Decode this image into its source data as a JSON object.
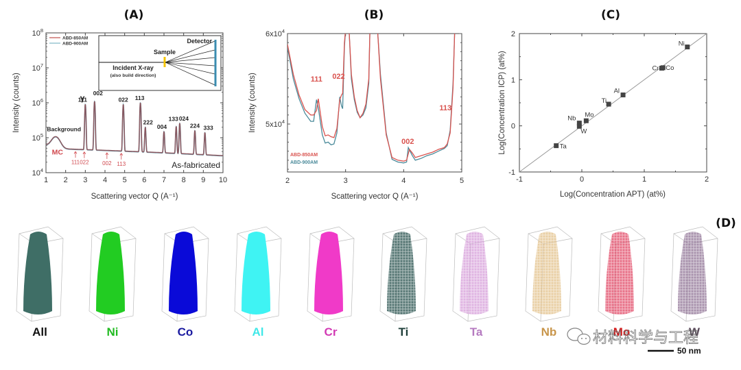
{
  "figure": {
    "panels": [
      "(A)",
      "(B)",
      "(C)",
      "(D)"
    ]
  },
  "chart_data": [
    {
      "id": "A",
      "type": "line",
      "title": "(A)",
      "xlabel": "Scattering vector Q (A⁻¹)",
      "ylabel": "Intensity (counts)",
      "xlim": [
        1,
        10
      ],
      "ylim": [
        10000,
        100000000
      ],
      "yscale": "log",
      "xticks": [
        "1",
        "2",
        "3",
        "4",
        "5",
        "6",
        "7",
        "8",
        "9",
        "10"
      ],
      "yticks": [
        "10^4",
        "10^5",
        "10^6",
        "10^7",
        "10^8"
      ],
      "legend": {
        "position": "top-left",
        "entries": [
          {
            "name": "ABD-850AM",
            "color": "#c0504d"
          },
          {
            "name": "ABD-900AM",
            "color": "#7fb8c6"
          }
        ]
      },
      "baseline": {
        "start": 60000,
        "hump_Q": 1.5,
        "hump_value": 105000,
        "mid": 48000,
        "end": 30000
      },
      "gamma_label": "γ",
      "peaks": [
        {
          "label": "111",
          "Q": 3.0,
          "value": 900000
        },
        {
          "label": "002",
          "Q": 3.47,
          "value": 1100000
        },
        {
          "label": "022",
          "Q": 4.93,
          "value": 900000
        },
        {
          "label": "113",
          "Q": 5.8,
          "value": 1000000
        },
        {
          "label": "222",
          "Q": 6.05,
          "value": 200000
        },
        {
          "label": "004",
          "Q": 7.0,
          "value": 150000
        },
        {
          "label": "133",
          "Q": 7.62,
          "value": 210000
        },
        {
          "label": "024",
          "Q": 7.8,
          "value": 260000
        },
        {
          "label": "224",
          "Q": 8.57,
          "value": 160000
        },
        {
          "label": "333",
          "Q": 9.08,
          "value": 140000
        }
      ],
      "mc_label": "MC",
      "mc_peaks": [
        {
          "label": "111",
          "Q": 2.5
        },
        {
          "label": "022",
          "Q": 2.95
        },
        {
          "label": "002",
          "Q": 4.1
        },
        {
          "label": "113",
          "Q": 4.83
        }
      ],
      "annotations": {
        "background": "Background",
        "state": "As-fabricated"
      },
      "inset": {
        "detector": "Detector",
        "sample": "Sample",
        "incident": "Incident X-ray",
        "incident_note": "(also build direction)"
      }
    },
    {
      "id": "B",
      "type": "line",
      "title": "(B)",
      "xlabel": "Scattering vector Q (A⁻¹)",
      "ylabel": "Intensity (counts)",
      "xlim": [
        2,
        5
      ],
      "ylim": [
        44700,
        60000
      ],
      "xticks": [
        "2",
        "3",
        "4",
        "5"
      ],
      "yticks": [
        {
          "value": 50000,
          "label": "5x10^4"
        },
        {
          "value": 60000,
          "label": "6x10^4"
        }
      ],
      "legend": {
        "position": "bottom-left",
        "entries": [
          {
            "name": "ABD-850AM",
            "color": "#d9534f"
          },
          {
            "name": "ABD-900AM",
            "color": "#4a8a9a"
          }
        ]
      },
      "peak_labels": [
        {
          "label": "111",
          "Q": 2.5
        },
        {
          "label": "022",
          "Q": 2.9
        },
        {
          "label": "002",
          "Q": 4.08
        },
        {
          "label": "113",
          "Q": 4.8
        }
      ],
      "series": [
        {
          "name": "ABD-850AM",
          "color": "#d9534f",
          "x": [
            2.0,
            2.1,
            2.2,
            2.3,
            2.4,
            2.45,
            2.5,
            2.53,
            2.6,
            2.65,
            2.7,
            2.75,
            2.8,
            2.85,
            2.9,
            2.93,
            2.95,
            2.98,
            3.0,
            3.06,
            3.1,
            3.15,
            3.2,
            3.25,
            3.3,
            3.35,
            3.4,
            3.42,
            3.55,
            3.6,
            3.7,
            3.8,
            3.9,
            4.0,
            4.05,
            4.1,
            4.15,
            4.2,
            4.3,
            4.4,
            4.5,
            4.6,
            4.7,
            4.75,
            4.8,
            4.85,
            4.88
          ],
          "y": [
            58800,
            55500,
            53200,
            51600,
            51000,
            51000,
            51500,
            52800,
            49700,
            48700,
            48800,
            48600,
            48500,
            49500,
            52700,
            53200,
            53400,
            59000,
            60500,
            60500,
            55500,
            53000,
            51500,
            50700,
            51200,
            52200,
            55000,
            60500,
            60500,
            55000,
            48800,
            46300,
            46000,
            45900,
            46000,
            47200,
            46800,
            46300,
            46500,
            46700,
            46900,
            47200,
            47400,
            47800,
            49000,
            54000,
            60500
          ]
        },
        {
          "name": "ABD-900AM",
          "color": "#4a8a9a",
          "x": [
            2.0,
            2.1,
            2.2,
            2.3,
            2.4,
            2.45,
            2.5,
            2.53,
            2.6,
            2.65,
            2.7,
            2.75,
            2.8,
            2.85,
            2.9,
            2.93,
            2.95,
            2.98,
            3.0,
            3.06,
            3.1,
            3.15,
            3.2,
            3.25,
            3.3,
            3.35,
            3.4,
            3.42,
            3.55,
            3.6,
            3.7,
            3.8,
            3.9,
            4.0,
            4.05,
            4.08,
            4.15,
            4.2,
            4.3,
            4.4,
            4.5,
            4.6,
            4.7,
            4.75,
            4.8,
            4.85,
            4.88
          ],
          "y": [
            58500,
            55000,
            52800,
            51200,
            50300,
            50300,
            52700,
            51800,
            48800,
            47900,
            48000,
            47700,
            47800,
            49000,
            53000,
            52000,
            51700,
            58500,
            60500,
            60500,
            55000,
            52700,
            51300,
            50700,
            51000,
            51800,
            54500,
            60500,
            60500,
            55500,
            49000,
            46100,
            45800,
            45700,
            45800,
            47400,
            46500,
            46000,
            46200,
            46500,
            46700,
            47000,
            47300,
            47600,
            49300,
            54500,
            60500
          ]
        }
      ]
    },
    {
      "id": "C",
      "type": "scatter",
      "title": "(C)",
      "xlabel": "Log(Concentration APT) (at%)",
      "ylabel": "Log(Concentration ICP) (at%)",
      "xlim": [
        -1,
        2
      ],
      "ylim": [
        -1,
        2
      ],
      "xticks": [
        "-1",
        "0",
        "1",
        "2"
      ],
      "yticks": [
        "-1",
        "0",
        "1",
        "2"
      ],
      "reference_line": "y = x",
      "points": [
        {
          "label": "Ni",
          "x": 1.69,
          "y": 1.71
        },
        {
          "label": "Cr",
          "x": 1.28,
          "y": 1.25
        },
        {
          "label": "Co",
          "x": 1.3,
          "y": 1.26
        },
        {
          "label": "Al",
          "x": 0.66,
          "y": 0.67
        },
        {
          "label": "Ti",
          "x": 0.43,
          "y": 0.47
        },
        {
          "label": "Mo",
          "x": 0.07,
          "y": 0.11
        },
        {
          "label": "Nb",
          "x": -0.04,
          "y": 0.06
        },
        {
          "label": "W",
          "x": -0.04,
          "y": -0.01
        },
        {
          "label": "Ta",
          "x": -0.41,
          "y": -0.43
        }
      ]
    }
  ],
  "panel_d": {
    "title": "(D)",
    "scale_bar": "50 nm",
    "reconstructions": [
      {
        "label": "All",
        "color": "#3f6e66",
        "label_color": "#111111",
        "sparse": false
      },
      {
        "label": "Ni",
        "color": "#22cc22",
        "label_color": "#22bb22",
        "sparse": false
      },
      {
        "label": "Co",
        "color": "#0a0ad8",
        "label_color": "#1a1aa0",
        "sparse": false
      },
      {
        "label": "Al",
        "color": "#3ff3f3",
        "label_color": "#3fe8e8",
        "sparse": false
      },
      {
        "label": "Cr",
        "color": "#f03ac8",
        "label_color": "#d23ab4",
        "sparse": false
      },
      {
        "label": "Ti",
        "color": "#1f4a46",
        "label_color": "#1f3f3a",
        "sparse": true
      },
      {
        "label": "Ta",
        "color": "#d49ad8",
        "label_color": "#b57ac0",
        "sparse": true
      },
      {
        "label": "Nb",
        "color": "#e2bf86",
        "label_color": "#c8954a",
        "sparse": true
      },
      {
        "label": "Mo",
        "color": "#e0405e",
        "label_color": "#d42020",
        "sparse": true
      },
      {
        "label": "W",
        "color": "#8c6e92",
        "label_color": "#5a4a5a",
        "sparse": true
      }
    ]
  },
  "watermark": {
    "text": "材料科学与工程",
    "icon": "wechat-icon"
  }
}
